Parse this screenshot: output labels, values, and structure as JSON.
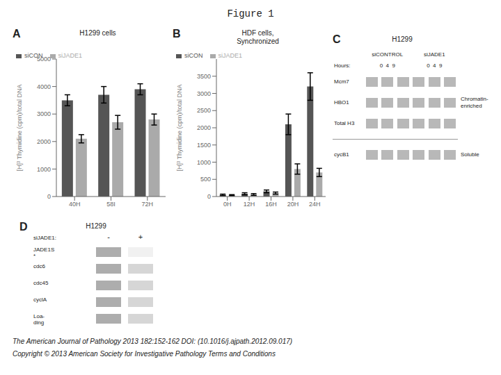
{
  "title": "Figure 1",
  "annotations": [
    "The American Journal of Pathology 2013 182:152-162 DOI: (10.1016/j.ajpath.2012.09.017)",
    "Copyright © 2013 American Society for Investigative Pathology Terms and Conditions"
  ],
  "chart_data": [
    {
      "type": "bar",
      "title": "A",
      "subtitle": "H1299 cells",
      "y_label": "[H]³ Thymidine (cpm)/total DNA",
      "categories": [
        "40H",
        "58I",
        "72H"
      ],
      "series": [
        {
          "name": "siCON",
          "color": "#555555",
          "values": [
            3500,
            3700,
            3900
          ],
          "errors": [
            200,
            300,
            200
          ]
        },
        {
          "name": "siJADE1",
          "color": "#aaaaaa",
          "values": [
            2100,
            2700,
            2800
          ],
          "errors": [
            150,
            250,
            200
          ]
        }
      ],
      "ylim": [
        0,
        5000
      ],
      "yticks": [
        0,
        1000,
        2000,
        3000,
        4000,
        5000
      ],
      "legend": "upper left"
    },
    {
      "type": "bar",
      "title": "B",
      "subtitle": "HDF cells,\nSynchronized",
      "y_label": "[H]³ Thymidine (cpm)/total DNA",
      "categories": [
        "0H",
        "12H",
        "16H",
        "20H",
        "24H"
      ],
      "series": [
        {
          "name": "siCON",
          "color": "#555555",
          "values": [
            50,
            80,
            150,
            2100,
            3200
          ],
          "errors": [
            20,
            30,
            40,
            300,
            400
          ]
        },
        {
          "name": "siJADE1",
          "color": "#aaaaaa",
          "values": [
            40,
            60,
            100,
            800,
            700
          ],
          "errors": [
            15,
            25,
            30,
            150,
            120
          ]
        }
      ],
      "ylim": [
        0,
        4000
      ],
      "yticks": [
        0,
        500,
        1000,
        1500,
        2000,
        2500,
        3000,
        3500
      ],
      "legend": "upper left"
    },
    {
      "type": "blot",
      "title": "C",
      "subtitle": "H1299",
      "annotations": [
        "siCONTROL",
        "siJADE1",
        "Hours:",
        "0  4  9",
        "0  4  9",
        "Chromatin-\nenriched",
        "Soluble"
      ],
      "categories": [
        "Mcm7",
        "HBO1",
        "Total H3",
        "cycB1"
      ]
    },
    {
      "type": "blot",
      "title": "D",
      "subtitle": "H1299",
      "annotations": [
        "siJADE1:",
        "-",
        "+"
      ],
      "categories": [
        "JADE1S\n*",
        "cdc6",
        "cdc45",
        "cyclA",
        "Loa-\nding"
      ]
    }
  ]
}
